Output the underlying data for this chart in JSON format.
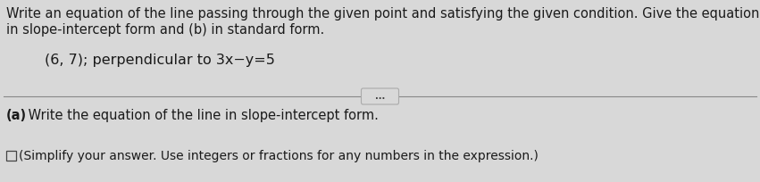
{
  "bg_color": "#d8d8d8",
  "line1": "Write an equation of the line passing through the given point and satisfying the given condition. Give the equation (a)",
  "line2": "in slope-intercept form and (b) in standard form.",
  "problem": "(6, 7); perpendicular to 3x−y=5",
  "part_a_bold": "(a)",
  "part_a_text": " Write the equation of the line in slope-intercept form.",
  "footnote": "(Simplify your answer. Use integers or fractions for any numbers in the expression.)",
  "dots_label": "...",
  "font_size_main": 10.5,
  "font_size_problem": 11.5,
  "font_size_footnote": 10.0,
  "text_color": "#1a1a1a",
  "line_color": "#888888",
  "btn_edge_color": "#aaaaaa"
}
